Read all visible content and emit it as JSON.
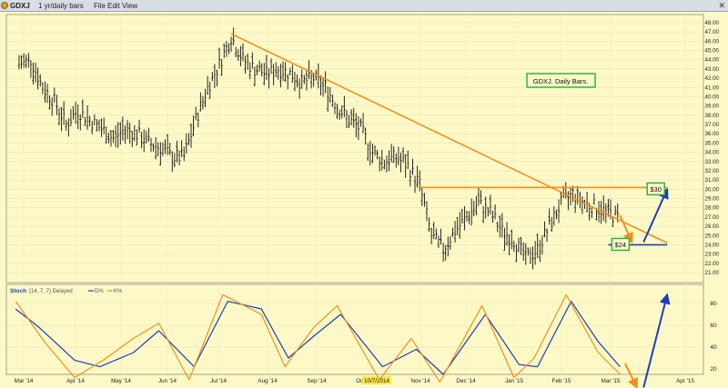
{
  "window": {
    "symbol": "GDXJ",
    "period": "1 yr/daily bars",
    "menu": [
      "File",
      "Edit",
      "View"
    ]
  },
  "chart_data": [
    {
      "type": "ohlc",
      "panel": "price",
      "annotation": "GDXJ. Daily Bars.",
      "x_labels": [
        "Mar '14",
        "Apr '14",
        "May '14",
        "Jun '14",
        "Jul '14",
        "Aug '14",
        "Sep '14",
        "Oct",
        "10/7/2014",
        "Nov '14",
        "Dec '14",
        "Jan '15",
        "Feb '15",
        "Mar '15",
        "Apr '15"
      ],
      "ylim": [
        20.0,
        48.0
      ],
      "yticks": [
        "21.00",
        "22.00",
        "23.00",
        "24.00",
        "25.00",
        "26.00",
        "27.00",
        "28.00",
        "29.00",
        "30.00",
        "31.00",
        "32.00",
        "33.00",
        "34.00",
        "35.00",
        "36.00",
        "37.00",
        "38.00",
        "39.00",
        "40.00",
        "41.00",
        "42.00",
        "43.00",
        "44.00",
        "45.00",
        "46.00",
        "47.00",
        "48.00"
      ],
      "grid": true,
      "series": [
        {
          "values": [
            {
              "date": "2014-03-03",
              "close": 43.5
            },
            {
              "date": "2014-03-10",
              "close": 44.0
            },
            {
              "date": "2014-03-17",
              "close": 41.0
            },
            {
              "date": "2014-03-24",
              "close": 39.5
            },
            {
              "date": "2014-03-31",
              "close": 37.0
            },
            {
              "date": "2014-04-07",
              "close": 38.5
            },
            {
              "date": "2014-04-14",
              "close": 37.5
            },
            {
              "date": "2014-04-21",
              "close": 36.5
            },
            {
              "date": "2014-04-28",
              "close": 35.5
            },
            {
              "date": "2014-05-05",
              "close": 36.5
            },
            {
              "date": "2014-05-12",
              "close": 36.0
            },
            {
              "date": "2014-05-19",
              "close": 35.0
            },
            {
              "date": "2014-05-26",
              "close": 34.5
            },
            {
              "date": "2014-06-02",
              "close": 33.5
            },
            {
              "date": "2014-06-09",
              "close": 33.5
            },
            {
              "date": "2014-06-16",
              "close": 37.5
            },
            {
              "date": "2014-06-23",
              "close": 41.0
            },
            {
              "date": "2014-06-30",
              "close": 43.5
            },
            {
              "date": "2014-07-07",
              "close": 46.5
            },
            {
              "date": "2014-07-14",
              "close": 44.0
            },
            {
              "date": "2014-07-21",
              "close": 43.0
            },
            {
              "date": "2014-07-28",
              "close": 42.5
            },
            {
              "date": "2014-08-04",
              "close": 43.0
            },
            {
              "date": "2014-08-11",
              "close": 42.5
            },
            {
              "date": "2014-08-18",
              "close": 41.5
            },
            {
              "date": "2014-08-25",
              "close": 42.0
            },
            {
              "date": "2014-09-01",
              "close": 41.0
            },
            {
              "date": "2014-09-08",
              "close": 39.0
            },
            {
              "date": "2014-09-15",
              "close": 37.5
            },
            {
              "date": "2014-09-22",
              "close": 36.5
            },
            {
              "date": "2014-09-29",
              "close": 34.0
            },
            {
              "date": "2014-10-06",
              "close": 33.0
            },
            {
              "date": "2014-10-13",
              "close": 33.5
            },
            {
              "date": "2014-10-20",
              "close": 32.5
            },
            {
              "date": "2014-10-27",
              "close": 30.5
            },
            {
              "date": "2014-11-03",
              "close": 25.0
            },
            {
              "date": "2014-11-10",
              "close": 23.5
            },
            {
              "date": "2014-11-17",
              "close": 25.5
            },
            {
              "date": "2014-11-24",
              "close": 27.0
            },
            {
              "date": "2014-12-01",
              "close": 28.5
            },
            {
              "date": "2014-12-08",
              "close": 27.5
            },
            {
              "date": "2014-12-15",
              "close": 25.5
            },
            {
              "date": "2014-12-22",
              "close": 24.5
            },
            {
              "date": "2014-12-29",
              "close": 22.5
            },
            {
              "date": "2015-01-05",
              "close": 23.5
            },
            {
              "date": "2015-01-12",
              "close": 26.0
            },
            {
              "date": "2015-01-19",
              "close": 28.5
            },
            {
              "date": "2015-01-26",
              "close": 29.5
            },
            {
              "date": "2015-02-02",
              "close": 28.5
            },
            {
              "date": "2015-02-09",
              "close": 28.0
            },
            {
              "date": "2015-02-16",
              "close": 27.5
            },
            {
              "date": "2015-02-23",
              "close": 26.8
            }
          ]
        }
      ],
      "trendlines": [
        {
          "name": "downtrend",
          "color": "#f0901c",
          "from": {
            "date": "2014-07-07",
            "value": 46.8
          },
          "to": {
            "date": "2015-03-23",
            "value": 24.2
          }
        },
        {
          "name": "resistance",
          "color": "#f0901c",
          "from": {
            "date": "2014-10-27",
            "value": 30.2
          },
          "to": {
            "date": "2015-03-23",
            "value": 30.2
          }
        },
        {
          "name": "support",
          "color": "#1b3fb6",
          "from": {
            "date": "2015-02-16",
            "value": 24.0
          },
          "to": {
            "date": "2015-03-23",
            "value": 24.0
          }
        }
      ],
      "callouts": [
        {
          "label": "$30",
          "value": 30.0,
          "date": "2015-03-16"
        },
        {
          "label": "$24",
          "value": 24.0,
          "date": "2015-02-23"
        }
      ],
      "arrows": [
        {
          "color": "#f0901c",
          "from": {
            "date": "2015-02-23",
            "value": 27.2
          },
          "to": {
            "date": "2015-03-02",
            "value": 24.3
          }
        },
        {
          "color": "#1b3fb6",
          "from": {
            "date": "2015-03-09",
            "value": 24.3
          },
          "to": {
            "date": "2015-03-23",
            "value": 30.0
          }
        }
      ]
    },
    {
      "type": "line",
      "panel": "stochastic",
      "title": "Stoch",
      "params": "(14, 7, 7) Delayed",
      "legend": [
        "D%",
        "K%"
      ],
      "ylim": [
        0,
        100
      ],
      "yticks": [
        20,
        40,
        60,
        80
      ],
      "series": [
        {
          "name": "D%",
          "color": "#1b3fb6",
          "values": [
            {
              "date": "2014-03-01",
              "value": 75
            },
            {
              "date": "2014-03-15",
              "value": 58
            },
            {
              "date": "2014-04-05",
              "value": 28
            },
            {
              "date": "2014-04-20",
              "value": 22
            },
            {
              "date": "2014-05-10",
              "value": 35
            },
            {
              "date": "2014-05-25",
              "value": 55
            },
            {
              "date": "2014-06-15",
              "value": 22
            },
            {
              "date": "2014-07-05",
              "value": 82
            },
            {
              "date": "2014-07-25",
              "value": 75
            },
            {
              "date": "2014-08-10",
              "value": 30
            },
            {
              "date": "2014-08-25",
              "value": 50
            },
            {
              "date": "2014-09-10",
              "value": 70
            },
            {
              "date": "2014-10-05",
              "value": 22
            },
            {
              "date": "2014-10-25",
              "value": 38
            },
            {
              "date": "2014-11-10",
              "value": 15
            },
            {
              "date": "2014-12-05",
              "value": 70
            },
            {
              "date": "2014-12-25",
              "value": 24
            },
            {
              "date": "2015-01-05",
              "value": 22
            },
            {
              "date": "2015-01-25",
              "value": 82
            },
            {
              "date": "2015-02-10",
              "value": 45
            },
            {
              "date": "2015-02-23",
              "value": 22
            }
          ]
        },
        {
          "name": "K%",
          "color": "#f0901c",
          "values": [
            {
              "date": "2014-03-01",
              "value": 82
            },
            {
              "date": "2014-03-18",
              "value": 45
            },
            {
              "date": "2014-04-05",
              "value": 12
            },
            {
              "date": "2014-04-22",
              "value": 28
            },
            {
              "date": "2014-05-10",
              "value": 48
            },
            {
              "date": "2014-05-25",
              "value": 62
            },
            {
              "date": "2014-06-12",
              "value": 10
            },
            {
              "date": "2014-07-02",
              "value": 88
            },
            {
              "date": "2014-07-25",
              "value": 70
            },
            {
              "date": "2014-08-08",
              "value": 22
            },
            {
              "date": "2014-08-25",
              "value": 58
            },
            {
              "date": "2014-09-08",
              "value": 78
            },
            {
              "date": "2014-10-03",
              "value": 10
            },
            {
              "date": "2014-10-22",
              "value": 48
            },
            {
              "date": "2014-11-08",
              "value": 8
            },
            {
              "date": "2014-12-03",
              "value": 78
            },
            {
              "date": "2014-12-22",
              "value": 12
            },
            {
              "date": "2015-01-03",
              "value": 30
            },
            {
              "date": "2015-01-22",
              "value": 88
            },
            {
              "date": "2015-02-10",
              "value": 35
            },
            {
              "date": "2015-02-23",
              "value": 15
            }
          ]
        }
      ],
      "arrows": [
        {
          "color": "#f0901c",
          "from": {
            "date": "2015-02-26",
            "value": 25
          },
          "to": {
            "date": "2015-03-05",
            "value": 3
          }
        },
        {
          "color": "#1b3fb6",
          "from": {
            "date": "2015-03-09",
            "value": 3
          },
          "to": {
            "date": "2015-03-23",
            "value": 88
          }
        }
      ]
    }
  ]
}
